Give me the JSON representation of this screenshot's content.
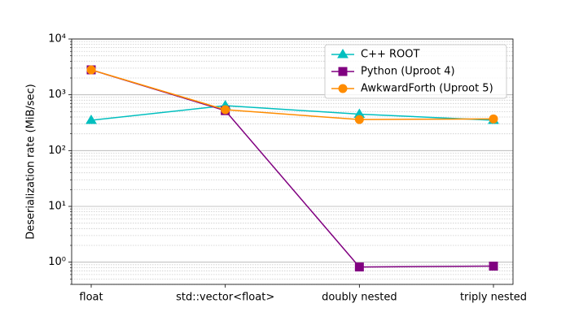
{
  "chart_data": {
    "type": "line",
    "ylabel": "Deserialization rate (MiB/sec)",
    "categories": [
      "float",
      "std::vector<float>",
      "doubly nested",
      "triply nested"
    ],
    "series": [
      {
        "name": "C++ ROOT",
        "color": "#00bfbf",
        "marker": "triangle",
        "values": [
          350,
          640,
          450,
          350
        ]
      },
      {
        "name": "Python (Uproot 4)",
        "color": "#800080",
        "marker": "square",
        "values": [
          2800,
          520,
          0.82,
          0.85
        ]
      },
      {
        "name": "AwkwardForth (Uproot 5)",
        "color": "#ff8c00",
        "marker": "circle",
        "values": [
          2800,
          540,
          360,
          370
        ]
      }
    ],
    "log_scale": "y",
    "ylim": [
      0.4,
      10000
    ],
    "yticks": [
      {
        "value": 1,
        "label": "10⁰"
      },
      {
        "value": 10,
        "label": "10¹"
      },
      {
        "value": 100,
        "label": "10²"
      },
      {
        "value": 1000,
        "label": "10³"
      },
      {
        "value": 10000,
        "label": "10⁴"
      }
    ],
    "yminorticks": [
      0.4,
      0.5,
      0.6,
      0.7,
      0.8,
      0.9,
      2,
      3,
      4,
      5,
      6,
      7,
      8,
      9,
      20,
      30,
      40,
      50,
      60,
      70,
      80,
      90,
      200,
      300,
      400,
      500,
      600,
      700,
      800,
      900,
      2000,
      3000,
      4000,
      5000,
      6000,
      7000,
      8000,
      9000
    ],
    "grid": true,
    "legend": "upper right"
  }
}
